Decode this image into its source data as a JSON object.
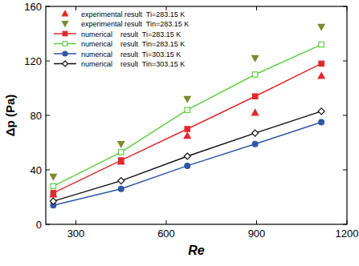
{
  "chart_data": {
    "type": "line",
    "x_label": "Re",
    "y_label": "Δp (Pa)",
    "x": [
      225,
      450,
      670,
      895,
      1115
    ],
    "xlim": [
      200,
      1200
    ],
    "xticks": [
      300,
      600,
      900,
      1200
    ],
    "ylim": [
      0,
      160
    ],
    "yticks": [
      0,
      40,
      80,
      120,
      160
    ],
    "grid": false,
    "legend": "top-left",
    "series": [
      {
        "name": "experimental result  Ti=283.15 K",
        "color": "#e4262a",
        "marker": "triangle",
        "line_style": "none",
        "values": [
          22,
          46,
          65,
          82,
          109
        ]
      },
      {
        "name": "experimental result  Tin=283.15 K",
        "color": "#7d8a2c",
        "marker": "triangle-down",
        "line_style": "none",
        "values": [
          35,
          59,
          92,
          122,
          145
        ]
      },
      {
        "name": "numerical    result  Ti=283.15 K",
        "color": "#e02a2c",
        "marker": "square",
        "line_style": "solid",
        "values": [
          23,
          47,
          70,
          94,
          118
        ]
      },
      {
        "name": "numerical    result  Tin=283.15 K",
        "color": "#5fcf45",
        "marker": "square-open",
        "line_style": "solid",
        "values": [
          28,
          53,
          84,
          110,
          132
        ]
      },
      {
        "name": "numerical    result  Ti=303.15 K",
        "color": "#2f56a8",
        "marker": "circle",
        "line_style": "solid",
        "values": [
          14,
          26,
          43,
          59,
          75
        ]
      },
      {
        "name": "numerical    result  Tin=303.15 K",
        "color": "#111111",
        "marker": "diamond-open",
        "line_style": "solid",
        "values": [
          17,
          32,
          50,
          67,
          83
        ]
      }
    ]
  }
}
